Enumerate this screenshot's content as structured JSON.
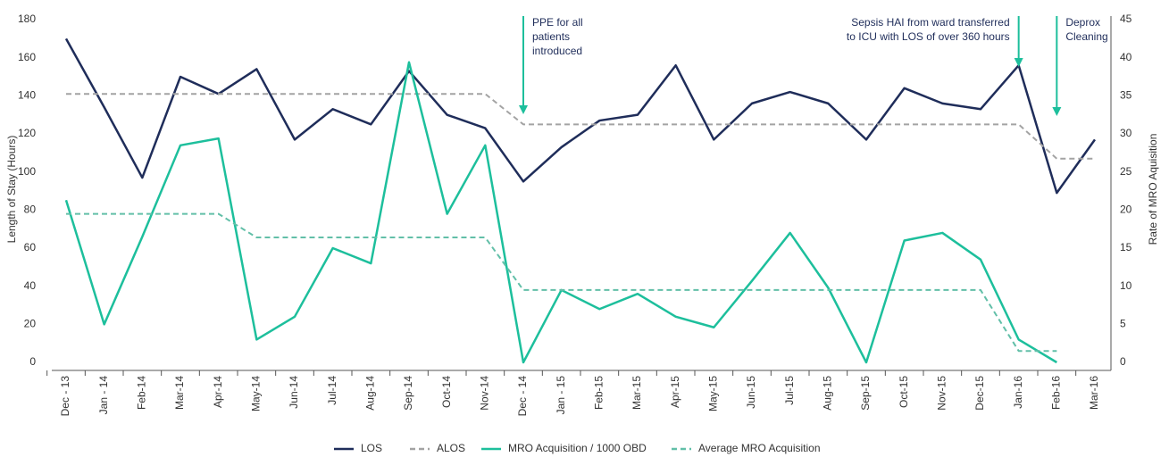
{
  "chart_data": {
    "type": "line",
    "categories": [
      "Dec - 13",
      "Jan - 14",
      "Feb-14",
      "Mar-14",
      "Apr-14",
      "May-14",
      "Jun-14",
      "Jul-14",
      "Aug-14",
      "Sep-14",
      "Oct-14",
      "Nov-14",
      "Dec - 14",
      "Jan - 15",
      "Feb-15",
      "Mar-15",
      "Apr-15",
      "May-15",
      "Jun-15",
      "Jul-15",
      "Aug-15",
      "Sep-15",
      "Oct-15",
      "Nov-15",
      "Dec-15",
      "Jan-16",
      "Feb-16",
      "Mar-16"
    ],
    "y_label": "Length of Stay (Hours)",
    "y2_label": "Rate of MRO Aquisition",
    "ylim": [
      0,
      180
    ],
    "yticks": [
      0,
      20,
      40,
      60,
      80,
      100,
      120,
      140,
      160,
      180
    ],
    "y2lim": [
      0,
      45
    ],
    "y2ticks": [
      0,
      5,
      10,
      15,
      20,
      25,
      30,
      35,
      40,
      45
    ],
    "series": [
      {
        "name": "LOS",
        "color": "#1f2d5a",
        "dash": false,
        "axis": "y",
        "values": [
          170,
          134,
          97,
          150,
          141,
          154,
          117,
          133,
          125,
          153,
          130,
          123,
          95,
          113,
          127,
          130,
          156,
          117,
          136,
          142,
          136,
          117,
          144,
          136,
          133,
          156,
          89,
          117
        ]
      },
      {
        "name": "ALOS",
        "color": "#a3a3a3",
        "dash": true,
        "axis": "y",
        "values": [
          141,
          141,
          141,
          141,
          141,
          141,
          141,
          141,
          141,
          141,
          141,
          141,
          125,
          125,
          125,
          125,
          125,
          125,
          125,
          125,
          125,
          125,
          125,
          125,
          125,
          125,
          107,
          107
        ]
      },
      {
        "name": "MRO Acquisition / 1000 OBD",
        "color": "#1dbf9c",
        "dash": false,
        "axis": "y2",
        "values": [
          21.3,
          5,
          16.5,
          28.5,
          29.4,
          3,
          6,
          15,
          13,
          39.4,
          19.5,
          28.5,
          0,
          9.5,
          7,
          9,
          6,
          4.6,
          10.7,
          17,
          9.8,
          0,
          16,
          17,
          13.5,
          3,
          0,
          null
        ]
      },
      {
        "name": "Average MRO Acquisition",
        "color": "#62bfa8",
        "dash": true,
        "axis": "y2",
        "values": [
          19.5,
          19.5,
          19.5,
          19.5,
          19.5,
          16.4,
          16.4,
          16.4,
          16.4,
          16.4,
          16.4,
          16.4,
          9.5,
          9.5,
          9.5,
          9.5,
          9.5,
          9.5,
          9.5,
          9.5,
          9.5,
          9.5,
          9.5,
          9.5,
          9.5,
          1.5,
          1.5,
          null
        ]
      }
    ],
    "annotations": [
      {
        "category": "Dec - 14",
        "lines": [
          "PPE for all",
          "patients",
          "introduced"
        ],
        "color": "#1dbf9c"
      },
      {
        "category": "Jan-16",
        "lines": [
          "Sepsis HAI from ward transferred",
          "to ICU with LOS of over 360 hours"
        ],
        "color": "#1dbf9c"
      },
      {
        "category": "Feb-16",
        "lines": [
          "Deprox",
          "Cleaning"
        ],
        "color": "#1dbf9c"
      }
    ]
  }
}
